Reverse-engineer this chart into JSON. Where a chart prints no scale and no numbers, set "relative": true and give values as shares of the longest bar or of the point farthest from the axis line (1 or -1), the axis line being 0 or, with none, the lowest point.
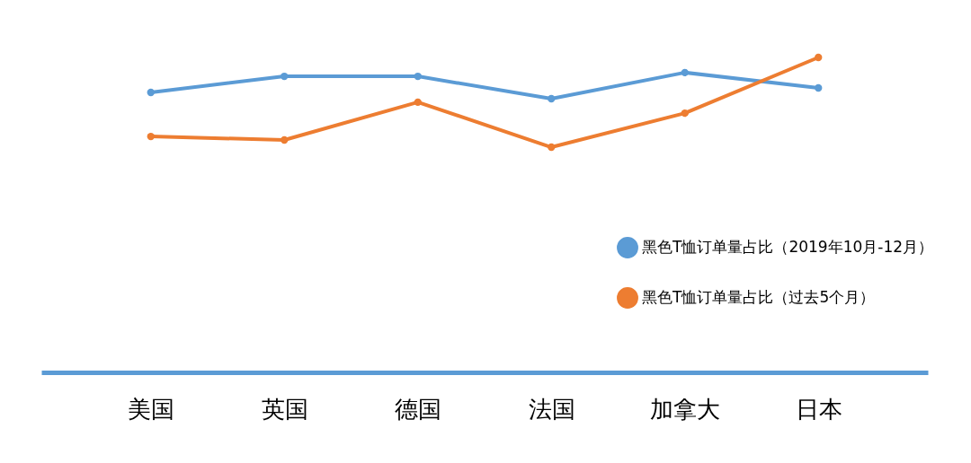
{
  "chart_data": {
    "type": "line",
    "relative": true,
    "categories": [
      "美国",
      "英国",
      "德国",
      "法国",
      "加拿大",
      "日本"
    ],
    "series": [
      {
        "name": "黑色T恤订单量占比（2019年10月-12月）",
        "color": "#5b9bd5",
        "values": [
          0.889,
          0.94,
          0.94,
          0.869,
          0.952,
          0.903
        ]
      },
      {
        "name": "黑色T恤订单量占比（过去5个月）",
        "color": "#ed7d31",
        "values": [
          0.749,
          0.738,
          0.858,
          0.715,
          0.823,
          1
        ]
      }
    ],
    "legend": "right",
    "marker": "circle",
    "grid": false
  }
}
